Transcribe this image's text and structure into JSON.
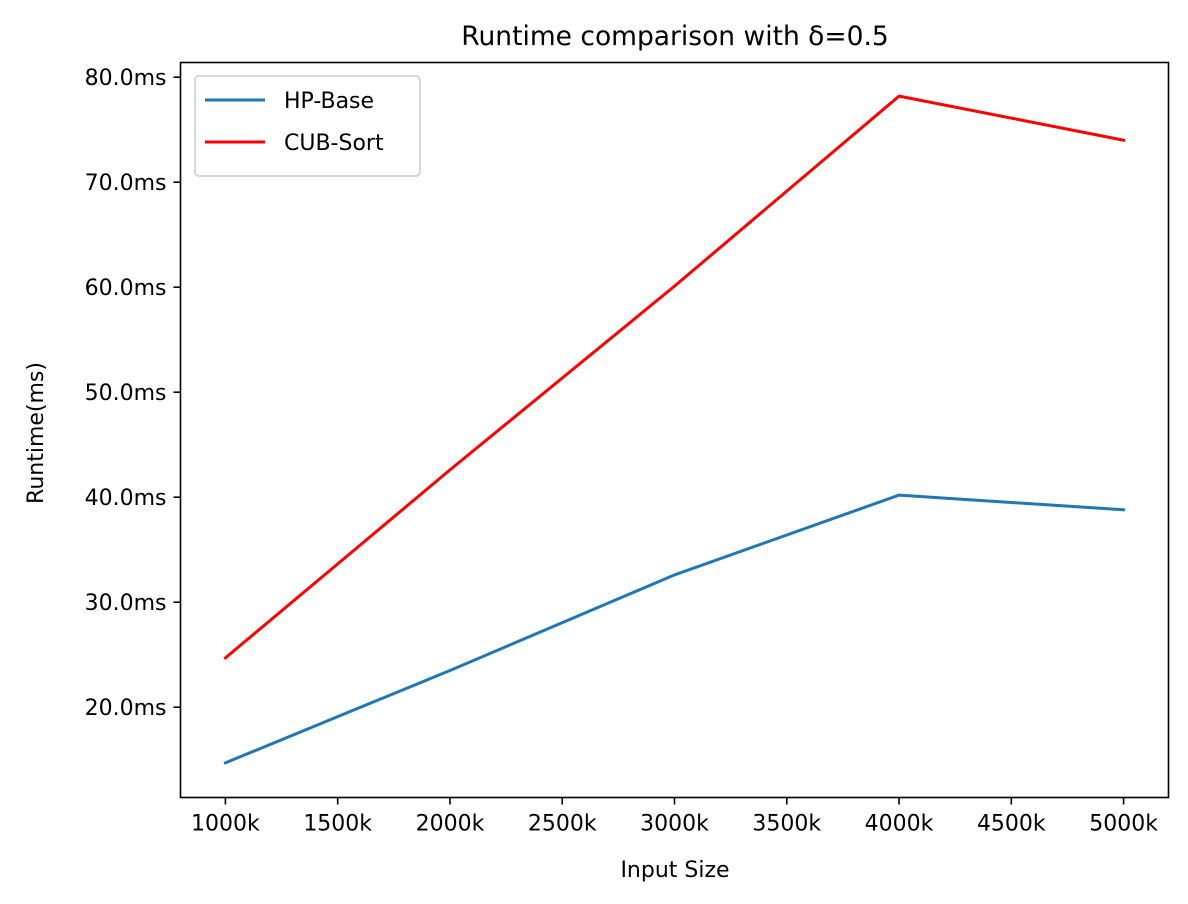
{
  "chart_data": {
    "type": "line",
    "title": "Runtime comparison with δ=0.5",
    "xlabel": "Input Size",
    "ylabel": "Runtime(ms)",
    "x": [
      1000,
      2000,
      3000,
      4000,
      5000
    ],
    "xlim": [
      800,
      5200
    ],
    "ylim": [
      11.4,
      81.4
    ],
    "x_ticks": [
      1000,
      1500,
      2000,
      2500,
      3000,
      3500,
      4000,
      4500,
      5000
    ],
    "x_tick_labels": [
      "1000k",
      "1500k",
      "2000k",
      "2500k",
      "3000k",
      "3500k",
      "4000k",
      "4500k",
      "5000k"
    ],
    "y_ticks": [
      20,
      30,
      40,
      50,
      60,
      70,
      80
    ],
    "y_tick_labels": [
      "20.0ms",
      "30.0ms",
      "40.0ms",
      "50.0ms",
      "60.0ms",
      "70.0ms",
      "80.0ms"
    ],
    "grid": false,
    "legend_position": "top-left",
    "series": [
      {
        "name": "HP-Base",
        "color": "#1f77b4",
        "values": [
          14.7,
          23.5,
          32.6,
          40.2,
          38.8
        ]
      },
      {
        "name": "CUB-Sort",
        "color": "#ff0000",
        "values": [
          24.7,
          42.6,
          60.1,
          78.2,
          74.0
        ]
      }
    ]
  }
}
